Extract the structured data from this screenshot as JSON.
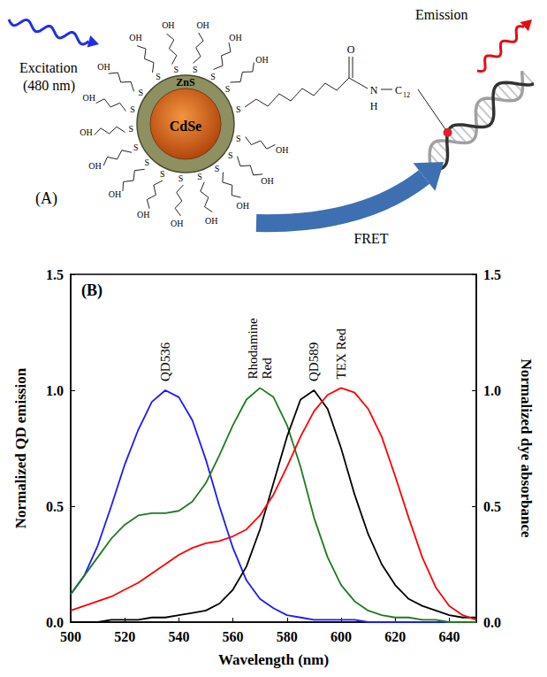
{
  "diagram": {
    "panel_label": "(A)",
    "excitation": [
      "Excitation",
      "(480 nm)"
    ],
    "emission": "Emission",
    "shell": "ZnS",
    "core": "CdSe",
    "transfer": "FRET",
    "ligand": {
      "anchor": "S",
      "end": "OH"
    },
    "linker": {
      "carbonyl": "O",
      "amine": "N",
      "hydrogen": "H",
      "chain": "C",
      "chain_count": "12"
    }
  },
  "chart_data": {
    "type": "line",
    "panel_label": "(B)",
    "xlabel": "Wavelength (nm)",
    "ylabel": "Normalized QD emission",
    "y2label": "Normalized dye absorbance",
    "x": [
      500,
      505,
      510,
      515,
      520,
      525,
      530,
      535,
      540,
      545,
      550,
      555,
      560,
      565,
      570,
      575,
      580,
      585,
      590,
      595,
      600,
      605,
      610,
      615,
      620,
      625,
      630,
      635,
      640,
      645,
      650
    ],
    "xlim": [
      500,
      650
    ],
    "xticks": [
      500,
      520,
      540,
      560,
      580,
      600,
      620,
      640
    ],
    "ylim": [
      0,
      1.5
    ],
    "yticks": [
      {
        "value": 0,
        "label": "0.0"
      },
      {
        "value": 0.5,
        "label": "0.5"
      },
      {
        "value": 1,
        "label": "1.0"
      },
      {
        "value": 1.5,
        "label": "1.5"
      }
    ],
    "y2lim": [
      0,
      1.5
    ],
    "y2ticks": [
      {
        "value": 0,
        "label": "0.0"
      },
      {
        "value": 0.5,
        "label": "0.5"
      },
      {
        "value": 1,
        "label": "1.0"
      },
      {
        "value": 1.5,
        "label": "1.5"
      }
    ],
    "grid": false,
    "series": [
      {
        "name": "QD536",
        "color": "#1a1aff",
        "values": [
          0.12,
          0.2,
          0.33,
          0.5,
          0.68,
          0.83,
          0.95,
          1.0,
          0.97,
          0.87,
          0.7,
          0.5,
          0.32,
          0.18,
          0.1,
          0.06,
          0.03,
          0.02,
          0.01,
          0.01,
          0.01,
          0.01,
          0.0,
          0.0,
          0.0,
          0.0,
          0.0,
          0.0,
          0.0,
          0.0,
          0.0
        ]
      },
      {
        "name": "Rhodamine Red",
        "color": "#1e7b1e",
        "axis": "y2",
        "values": [
          0.12,
          0.2,
          0.28,
          0.36,
          0.42,
          0.46,
          0.47,
          0.47,
          0.48,
          0.52,
          0.6,
          0.72,
          0.85,
          0.96,
          1.01,
          0.97,
          0.85,
          0.67,
          0.45,
          0.28,
          0.16,
          0.09,
          0.05,
          0.03,
          0.02,
          0.02,
          0.01,
          0.01,
          0.0,
          0.0,
          0.0
        ]
      },
      {
        "name": "QD589",
        "color": "#000000",
        "values": [
          0,
          0,
          0,
          0.01,
          0.01,
          0.01,
          0.02,
          0.02,
          0.03,
          0.04,
          0.05,
          0.08,
          0.14,
          0.24,
          0.4,
          0.6,
          0.8,
          0.96,
          1.0,
          0.92,
          0.75,
          0.55,
          0.38,
          0.25,
          0.16,
          0.1,
          0.07,
          0.05,
          0.03,
          0.02,
          0.02
        ]
      },
      {
        "name": "TEX Red",
        "color": "#ff0000",
        "axis": "y2",
        "values": [
          0.05,
          0.07,
          0.09,
          0.11,
          0.14,
          0.17,
          0.21,
          0.25,
          0.29,
          0.32,
          0.34,
          0.35,
          0.37,
          0.4,
          0.46,
          0.55,
          0.67,
          0.8,
          0.91,
          0.98,
          1.01,
          0.99,
          0.92,
          0.8,
          0.63,
          0.45,
          0.28,
          0.15,
          0.07,
          0.03,
          0.01
        ]
      }
    ]
  }
}
